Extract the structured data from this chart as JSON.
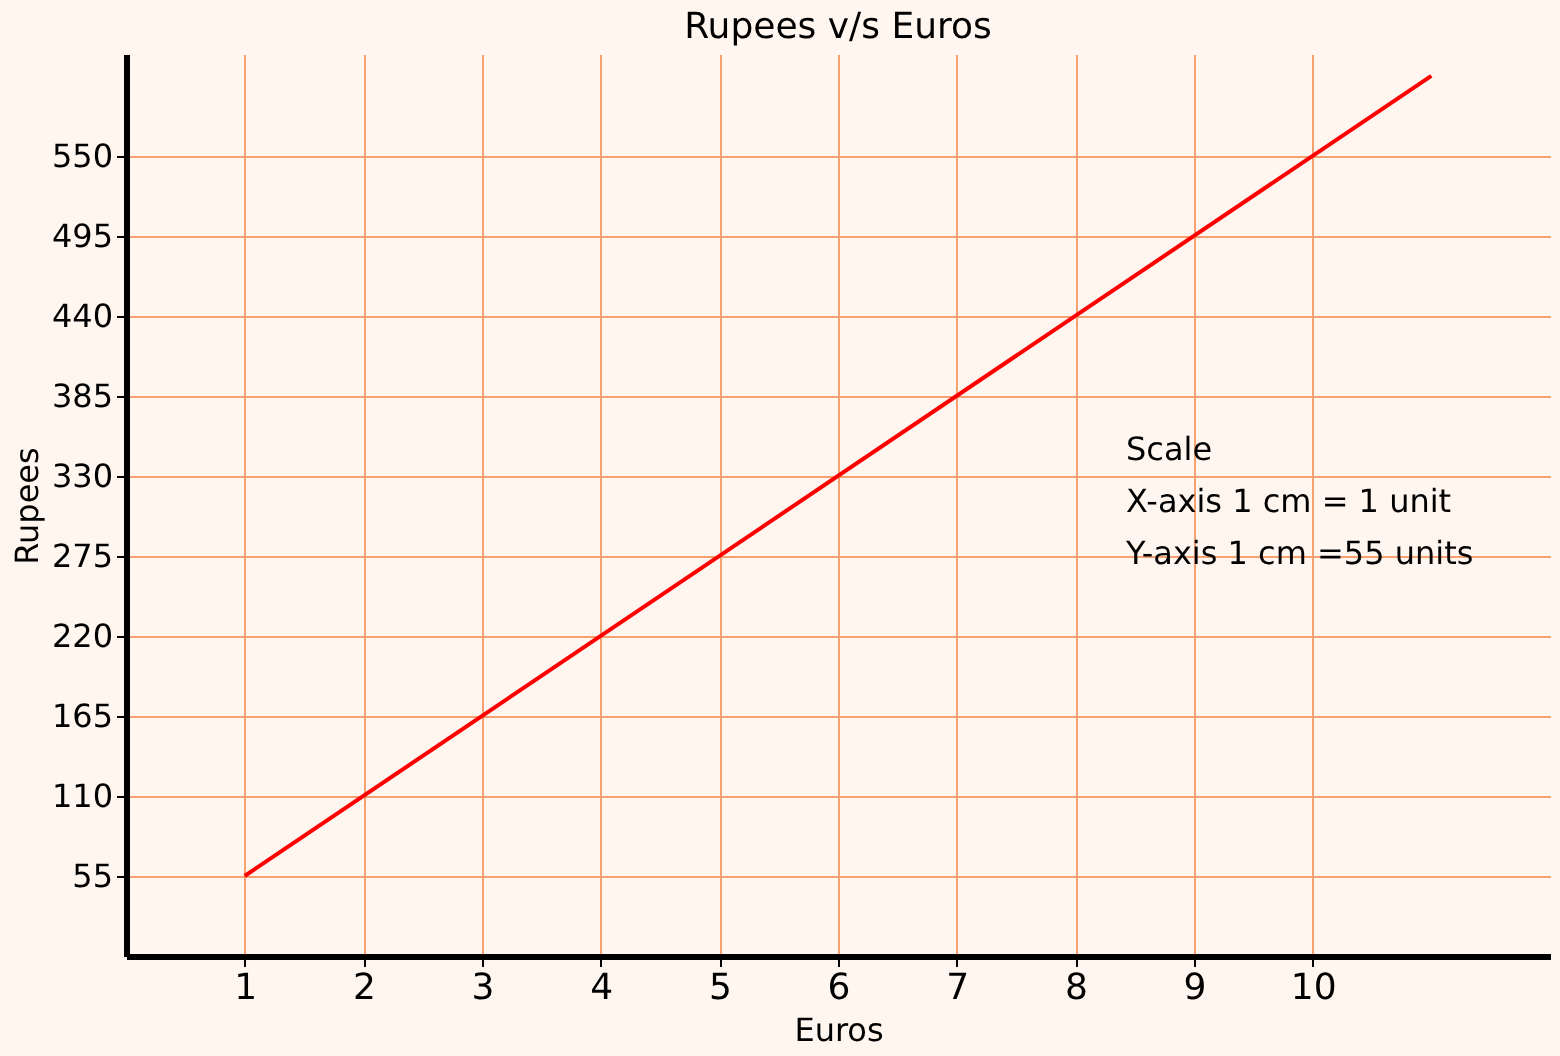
{
  "chart_data": {
    "type": "line",
    "title": "Rupees v/s Euros",
    "xlabel": "Euros",
    "ylabel": "Rupees",
    "x": [
      1,
      11
    ],
    "series": [
      {
        "color": "#ff0000",
        "values": [
          55,
          605
        ]
      }
    ],
    "xlim": [
      0,
      12
    ],
    "xticks": [
      1,
      2,
      3,
      4,
      5,
      6,
      7,
      8,
      9,
      10
    ],
    "ylim": [
      0,
      620
    ],
    "yticks": [
      55,
      110,
      165,
      220,
      275,
      330,
      385,
      440,
      495,
      550
    ],
    "grid": true,
    "marker": "none",
    "line_style": "solid",
    "annotations": [
      "Scale",
      "X-axis 1 cm = 1 unit",
      "Y-axis 1 cm =55 units"
    ]
  }
}
